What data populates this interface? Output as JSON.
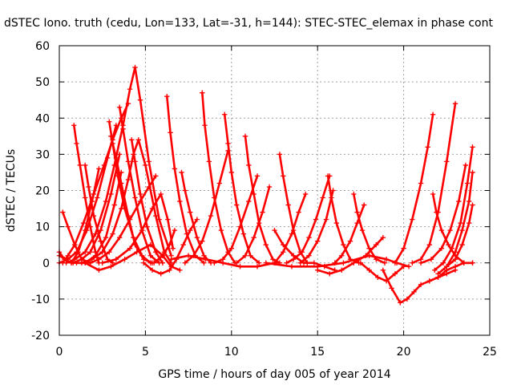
{
  "chart_data": {
    "type": "scatter",
    "title": "dSTEC Iono. truth (cedu, Lon=133, Lat=-31, h=144): STEC-STEC_elemax in phase cont",
    "xlabel": "GPS time / hours of day 005 of year 2014",
    "ylabel": "dSTEC  / TECUs",
    "xlim": [
      0,
      25
    ],
    "ylim": [
      -20,
      60
    ],
    "xticks": [
      "0",
      "5",
      "10",
      "15",
      "20",
      "25"
    ],
    "yticks": [
      "-20",
      "-10",
      "0",
      "10",
      "20",
      "30",
      "40",
      "50",
      "60"
    ],
    "grid": true,
    "marker": "+",
    "color": "#ff0000",
    "series": [
      {
        "x": [
          0.0,
          0.3,
          0.7,
          1.1,
          1.5,
          1.9,
          2.3
        ],
        "y": [
          3,
          1,
          0,
          3,
          9,
          17,
          26
        ]
      },
      {
        "x": [
          0.2,
          0.5,
          0.9,
          1.4,
          2.0,
          2.6,
          3.1,
          3.6,
          4.0
        ],
        "y": [
          0,
          2,
          5,
          11,
          19,
          27,
          34,
          40,
          44
        ]
      },
      {
        "x": [
          0.0,
          0.5,
          1.0,
          1.6,
          2.2,
          2.8,
          3.3
        ],
        "y": [
          0,
          1,
          3,
          9,
          18,
          29,
          38
        ]
      },
      {
        "x": [
          0.4,
          0.9,
          1.5,
          2.1,
          2.7,
          3.2,
          3.7,
          4.1,
          4.4,
          4.7,
          5.2,
          5.8,
          6.5
        ],
        "y": [
          0,
          1,
          3,
          8,
          17,
          27,
          38,
          48,
          54,
          45,
          28,
          12,
          2
        ]
      },
      {
        "x": [
          0.8,
          1.3,
          1.8,
          2.4,
          3.0,
          3.5
        ],
        "y": [
          0,
          1,
          3,
          9,
          19,
          30
        ]
      },
      {
        "x": [
          1.0,
          1.5,
          2.1,
          2.7,
          3.2,
          3.6
        ],
        "y": [
          0,
          0,
          2,
          7,
          16,
          25
        ]
      },
      {
        "x": [
          1.3,
          1.9,
          2.5,
          3.1,
          3.6,
          4.0,
          4.3,
          4.6,
          5.0,
          5.6,
          6.1,
          6.5
        ],
        "y": [
          0,
          1,
          3,
          8,
          15,
          23,
          30,
          34,
          27,
          13,
          3,
          0
        ]
      },
      {
        "x": [
          1.8,
          2.3,
          2.9,
          3.5,
          4.1,
          4.7,
          5.2,
          5.6
        ],
        "y": [
          0,
          1,
          3,
          7,
          12,
          17,
          21,
          24
        ]
      },
      {
        "x": [
          0.2,
          0.5,
          0.9,
          1.3,
          1.8
        ],
        "y": [
          14,
          10,
          5,
          1,
          0
        ]
      },
      {
        "x": [
          0.85,
          1.0,
          1.2,
          1.5,
          1.8,
          2.1,
          2.3
        ],
        "y": [
          38,
          33,
          27,
          18,
          10,
          3,
          0
        ]
      },
      {
        "x": [
          1.5,
          1.7,
          2.0,
          2.4,
          2.8,
          3.1
        ],
        "y": [
          27,
          21,
          13,
          6,
          1,
          0
        ]
      },
      {
        "x": [
          2.9,
          3.1,
          3.4,
          3.8,
          4.3,
          4.8,
          5.3
        ],
        "y": [
          39,
          33,
          24,
          15,
          7,
          2,
          0
        ]
      },
      {
        "x": [
          3.0,
          3.3,
          3.6,
          4.0,
          4.4,
          4.9,
          5.4
        ],
        "y": [
          35,
          29,
          22,
          13,
          5,
          1,
          0
        ]
      },
      {
        "x": [
          3.5,
          3.7,
          4.0,
          4.4,
          4.8,
          5.3,
          5.8
        ],
        "y": [
          43,
          37,
          28,
          18,
          9,
          2,
          0
        ]
      },
      {
        "x": [
          4.2,
          4.4,
          4.7,
          5.1,
          5.6,
          6.0
        ],
        "y": [
          34,
          28,
          19,
          10,
          3,
          0
        ]
      },
      {
        "x": [
          0.0,
          0.7,
          1.5,
          2.3,
          3.0,
          3.8,
          4.5,
          5.3,
          6.0,
          6.5,
          7.0
        ],
        "y": [
          2,
          0,
          0,
          -2,
          -1,
          1,
          3,
          5,
          2,
          -1,
          -2
        ]
      },
      {
        "x": [
          2.5,
          3.3,
          4.1,
          4.8,
          5.4,
          5.9,
          6.3,
          6.6
        ],
        "y": [
          0,
          1,
          4,
          9,
          15,
          19,
          12,
          4
        ]
      },
      {
        "x": [
          4.9,
          5.4,
          5.9,
          6.4,
          6.8,
          7.2,
          7.6,
          8.0
        ],
        "y": [
          0,
          -2,
          -3,
          -2,
          1,
          5,
          9,
          12
        ]
      },
      {
        "x": [
          6.25,
          6.45,
          6.7,
          7.0,
          7.4,
          7.9,
          8.4
        ],
        "y": [
          46,
          36,
          26,
          17,
          8,
          2,
          0
        ]
      },
      {
        "x": [
          7.1,
          7.3,
          7.6,
          8.0,
          8.4,
          8.8
        ],
        "y": [
          25,
          20,
          14,
          7,
          2,
          0
        ]
      },
      {
        "x": [
          8.3,
          8.45,
          8.7,
          9.0,
          9.4,
          9.8,
          10.2
        ],
        "y": [
          47,
          38,
          28,
          18,
          9,
          3,
          0
        ]
      },
      {
        "x": [
          9.6,
          9.8,
          10.0,
          10.3,
          10.7,
          11.1,
          11.6
        ],
        "y": [
          41,
          33,
          25,
          16,
          8,
          2,
          0
        ]
      },
      {
        "x": [
          10.8,
          11.0,
          11.3,
          11.6,
          12.0,
          12.4,
          12.8
        ],
        "y": [
          35,
          27,
          19,
          11,
          5,
          1,
          0
        ]
      },
      {
        "x": [
          12.8,
          13.0,
          13.3,
          13.6,
          14.0,
          14.4
        ],
        "y": [
          30,
          24,
          16,
          9,
          3,
          0
        ]
      },
      {
        "x": [
          7.3,
          7.8,
          8.3,
          8.8,
          9.3,
          9.8
        ],
        "y": [
          0,
          2,
          6,
          13,
          22,
          31
        ]
      },
      {
        "x": [
          9.0,
          9.5,
          10.0,
          10.5,
          11.0,
          11.5
        ],
        "y": [
          0,
          1,
          4,
          10,
          17,
          24
        ]
      },
      {
        "x": [
          10.3,
          10.8,
          11.3,
          11.8,
          12.2
        ],
        "y": [
          0,
          2,
          7,
          14,
          21
        ]
      },
      {
        "x": [
          5.5,
          6.0,
          6.4,
          6.7
        ],
        "y": [
          0,
          2,
          5,
          9
        ]
      },
      {
        "x": [
          6.5,
          7.5,
          8.5,
          9.5,
          10.5,
          11.5,
          12.5
        ],
        "y": [
          1,
          2,
          1,
          0,
          -1,
          -1,
          0
        ]
      },
      {
        "x": [
          12.5,
          13.0,
          13.5,
          13.9,
          14.3
        ],
        "y": [
          0,
          3,
          8,
          14,
          19
        ]
      },
      {
        "x": [
          13.2,
          13.6,
          14.1,
          14.5,
          14.9,
          15.3,
          15.7
        ],
        "y": [
          0,
          1,
          3,
          7,
          12,
          18,
          24
        ]
      },
      {
        "x": [
          15.6,
          15.8,
          16.1,
          16.5,
          16.9,
          17.4
        ],
        "y": [
          24,
          18,
          11,
          5,
          1,
          0
        ]
      },
      {
        "x": [
          14.0,
          14.5,
          15.0,
          15.5,
          15.9
        ],
        "y": [
          0,
          2,
          6,
          12,
          20
        ]
      },
      {
        "x": [
          16.0,
          16.4,
          16.9,
          17.3,
          17.7
        ],
        "y": [
          0,
          2,
          6,
          11,
          16
        ]
      },
      {
        "x": [
          17.1,
          17.3,
          17.6,
          18.0,
          18.4,
          18.9
        ],
        "y": [
          19,
          14,
          9,
          4,
          1,
          0
        ]
      },
      {
        "x": [
          12.5,
          13.0,
          13.6,
          14.2,
          14.8,
          15.4,
          16.0
        ],
        "y": [
          9,
          5,
          2,
          0,
          0,
          -1,
          -2
        ]
      },
      {
        "x": [
          15.0,
          15.7,
          16.4,
          17.1,
          17.8,
          18.4,
          18.8
        ],
        "y": [
          -2,
          -3,
          -2,
          0,
          2,
          5,
          7
        ]
      },
      {
        "x": [
          12.0,
          13.5,
          15.0,
          16.5,
          18.0,
          19.0,
          19.6,
          20.3
        ],
        "y": [
          0,
          -1,
          -1,
          0,
          2,
          1,
          0,
          -1
        ]
      },
      {
        "x": [
          17.5,
          18.0,
          18.5,
          19.0,
          19.5,
          20.0
        ],
        "y": [
          0,
          -2,
          -4,
          -5,
          -3,
          -1
        ]
      },
      {
        "x": [
          18.8,
          19.3,
          19.8,
          20.2,
          20.6,
          21.0,
          21.5,
          22.0,
          22.5,
          23.0
        ],
        "y": [
          -2,
          -7,
          -11,
          -10,
          -8,
          -6,
          -5,
          -4,
          -3,
          -2
        ]
      },
      {
        "x": [
          19.5,
          20.0,
          20.5,
          21.0,
          21.4,
          21.7
        ],
        "y": [
          0,
          4,
          12,
          22,
          32,
          41
        ]
      },
      {
        "x": [
          20.5,
          21.0,
          21.5,
          22.0,
          22.5,
          23.0
        ],
        "y": [
          0,
          1,
          5,
          14,
          28,
          44
        ]
      },
      {
        "x": [
          21.0,
          21.6,
          22.2,
          22.7,
          23.2,
          23.6
        ],
        "y": [
          0,
          1,
          4,
          9,
          17,
          27
        ]
      },
      {
        "x": [
          21.8,
          22.3,
          22.8,
          23.3,
          23.7,
          24.0
        ],
        "y": [
          -2,
          0,
          4,
          11,
          22,
          32
        ]
      },
      {
        "x": [
          22.0,
          22.5,
          23.0,
          23.4,
          23.8,
          24.0
        ],
        "y": [
          -3,
          -1,
          3,
          9,
          17,
          25
        ]
      },
      {
        "x": [
          22.5,
          23.0,
          23.4,
          23.8,
          24.0
        ],
        "y": [
          -1,
          1,
          5,
          11,
          16
        ]
      },
      {
        "x": [
          21.7,
          21.9,
          22.2,
          22.6,
          23.0,
          23.5,
          24.0
        ],
        "y": [
          19,
          14,
          9,
          5,
          2,
          0,
          0
        ]
      },
      {
        "x": [
          21.5,
          22.0,
          22.5,
          23.0,
          23.5,
          24.0
        ],
        "y": [
          -5,
          -4,
          -2,
          -1,
          0,
          0
        ]
      }
    ]
  }
}
